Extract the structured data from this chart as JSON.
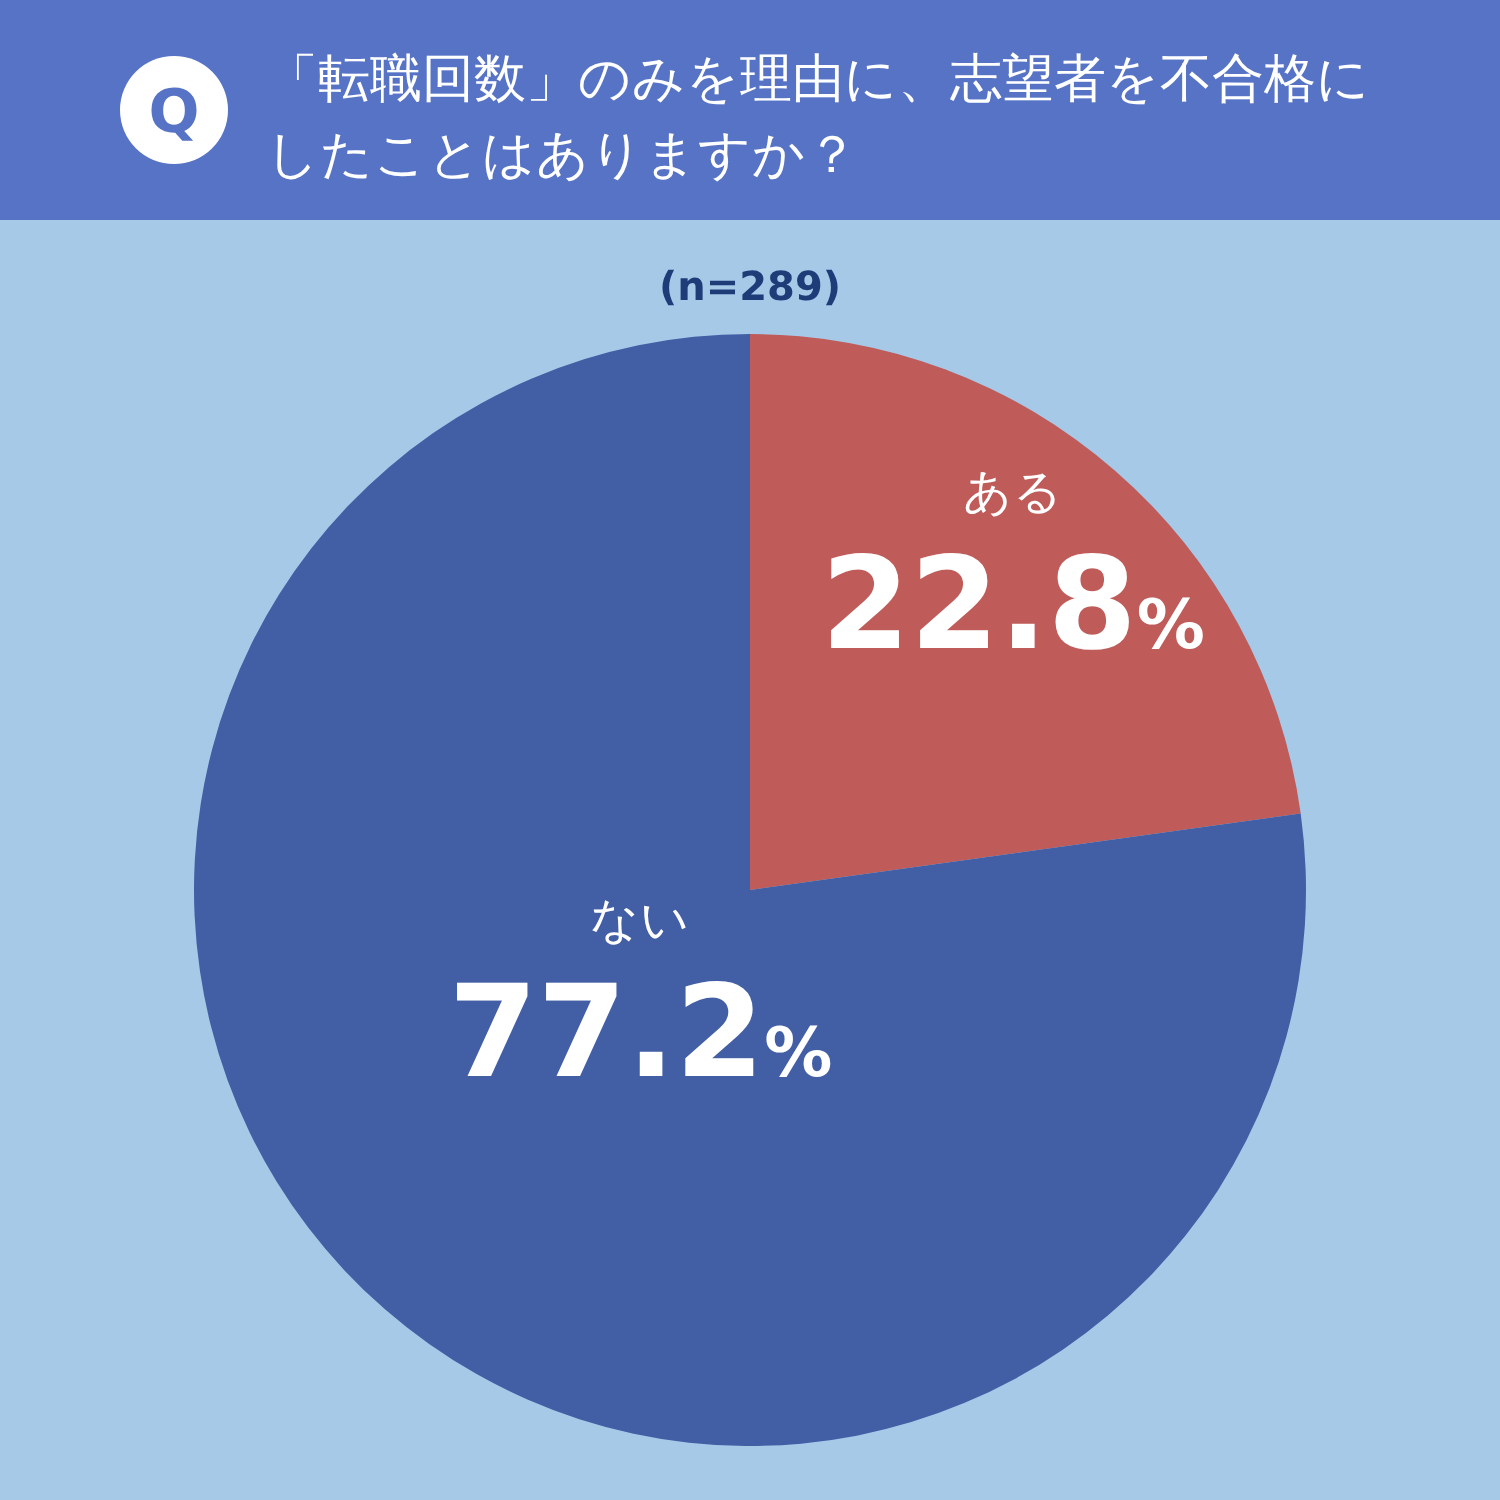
{
  "chart_data": {
    "type": "pie",
    "title": "「転職回数」のみを理由に、志望者を不合格にしたことはありますか？",
    "subtitle": "(n=289)",
    "annotations": [
      "Q"
    ],
    "categories": [
      "ある",
      "ない"
    ],
    "values": [
      22.8,
      77.2
    ],
    "colors": [
      "#bf5b59",
      "#425ea5"
    ],
    "value_labels": [
      "22.8%",
      "77.2%"
    ]
  }
}
